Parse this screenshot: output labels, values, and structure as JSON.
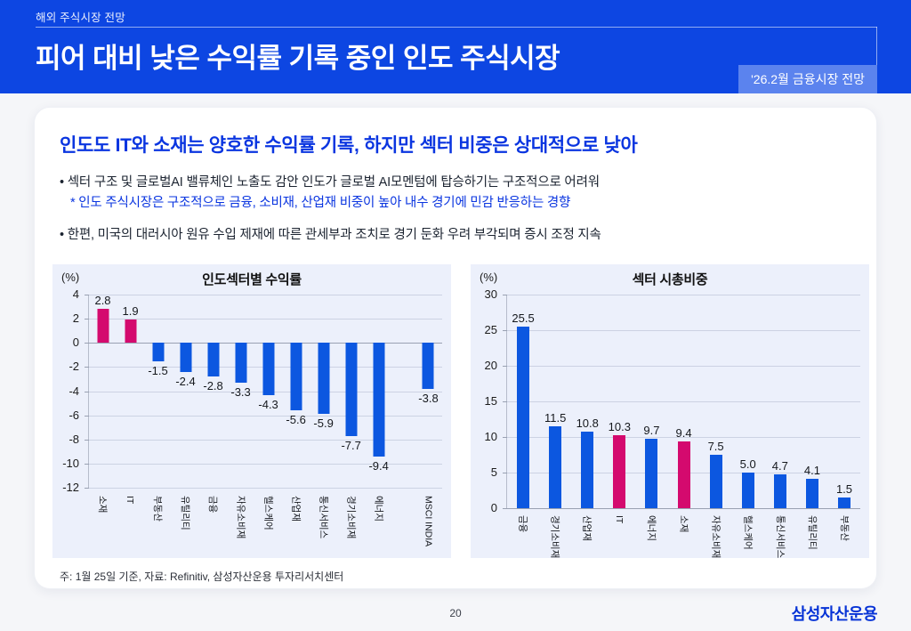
{
  "header": {
    "eyebrow": "해외 주식시장 전망",
    "title": "피어 대비 낮은 수익률 기록 중인 인도 주식시장",
    "badge": "'26.2월 금융시장 전망"
  },
  "card": {
    "heading": "인도도 IT와 소재는 양호한 수익률 기록, 하지만 섹터 비중은 상대적으로 낮아",
    "bullet1": "• 섹터 구조 및 글로벌AI 밸류체인 노출도 감안 인도가 글로벌 AI모멘텀에 탑승하기는 구조적으로 어려워",
    "bullet1_note": "* 인도 주식시장은 구조적으로 금융, 소비재, 산업재 비중이 높아 내수 경기에 민감 반응하는 경향",
    "bullet2": "• 한편, 미국의 대러시아 원유 수입 제재에 따른 관세부과 조치로 경기 둔화 우려 부각되며 증시 조정 지속",
    "note": "주: 1월 25일 기준, 자료: Refinitiv, 삼성자산운용 투자리서치센터"
  },
  "footer": {
    "page_number": "20",
    "logo": "삼성자산운용"
  },
  "colors": {
    "header_bg": "#0d46e2",
    "badge_bg": "#5b83ee",
    "accent_blue": "#0a35e0",
    "bar_blue": "#0c57e0",
    "bar_pink": "#d40a6e",
    "panel_bg": "#ecf0fb"
  },
  "chart_data": [
    {
      "type": "bar",
      "title": "인도섹터별 수익률",
      "unit_label": "(%)",
      "categories": [
        "소재",
        "IT",
        "부동산",
        "유틸리티",
        "금융",
        "자유소비재",
        "헬스케어",
        "산업재",
        "통신서비스",
        "경기소비재",
        "에너지",
        "MSCI INDIA"
      ],
      "values": [
        2.8,
        1.9,
        -1.5,
        -2.4,
        -2.8,
        -3.3,
        -4.3,
        -5.6,
        -5.9,
        -7.7,
        -9.4,
        -3.8
      ],
      "highlight_indices": [
        0,
        1
      ],
      "separator_before_index": 11,
      "ylim": [
        -12,
        4
      ],
      "ytick_step": 2,
      "grid": true,
      "legend": "none",
      "value_label_decimals": 1
    },
    {
      "type": "bar",
      "title": "섹터 시총비중",
      "unit_label": "(%)",
      "categories": [
        "금융",
        "경기소비재",
        "산업재",
        "IT",
        "에너지",
        "소재",
        "자유소비재",
        "헬스케어",
        "통신서비스",
        "유틸리티",
        "부동산"
      ],
      "values": [
        25.5,
        11.5,
        10.8,
        10.3,
        9.7,
        9.4,
        7.5,
        5.0,
        4.7,
        4.1,
        1.5
      ],
      "highlight_indices": [
        3,
        5
      ],
      "separator_before_index": -1,
      "ylim": [
        0,
        30
      ],
      "ytick_step": 5,
      "grid": true,
      "legend": "none",
      "value_label_decimals": 1
    }
  ]
}
